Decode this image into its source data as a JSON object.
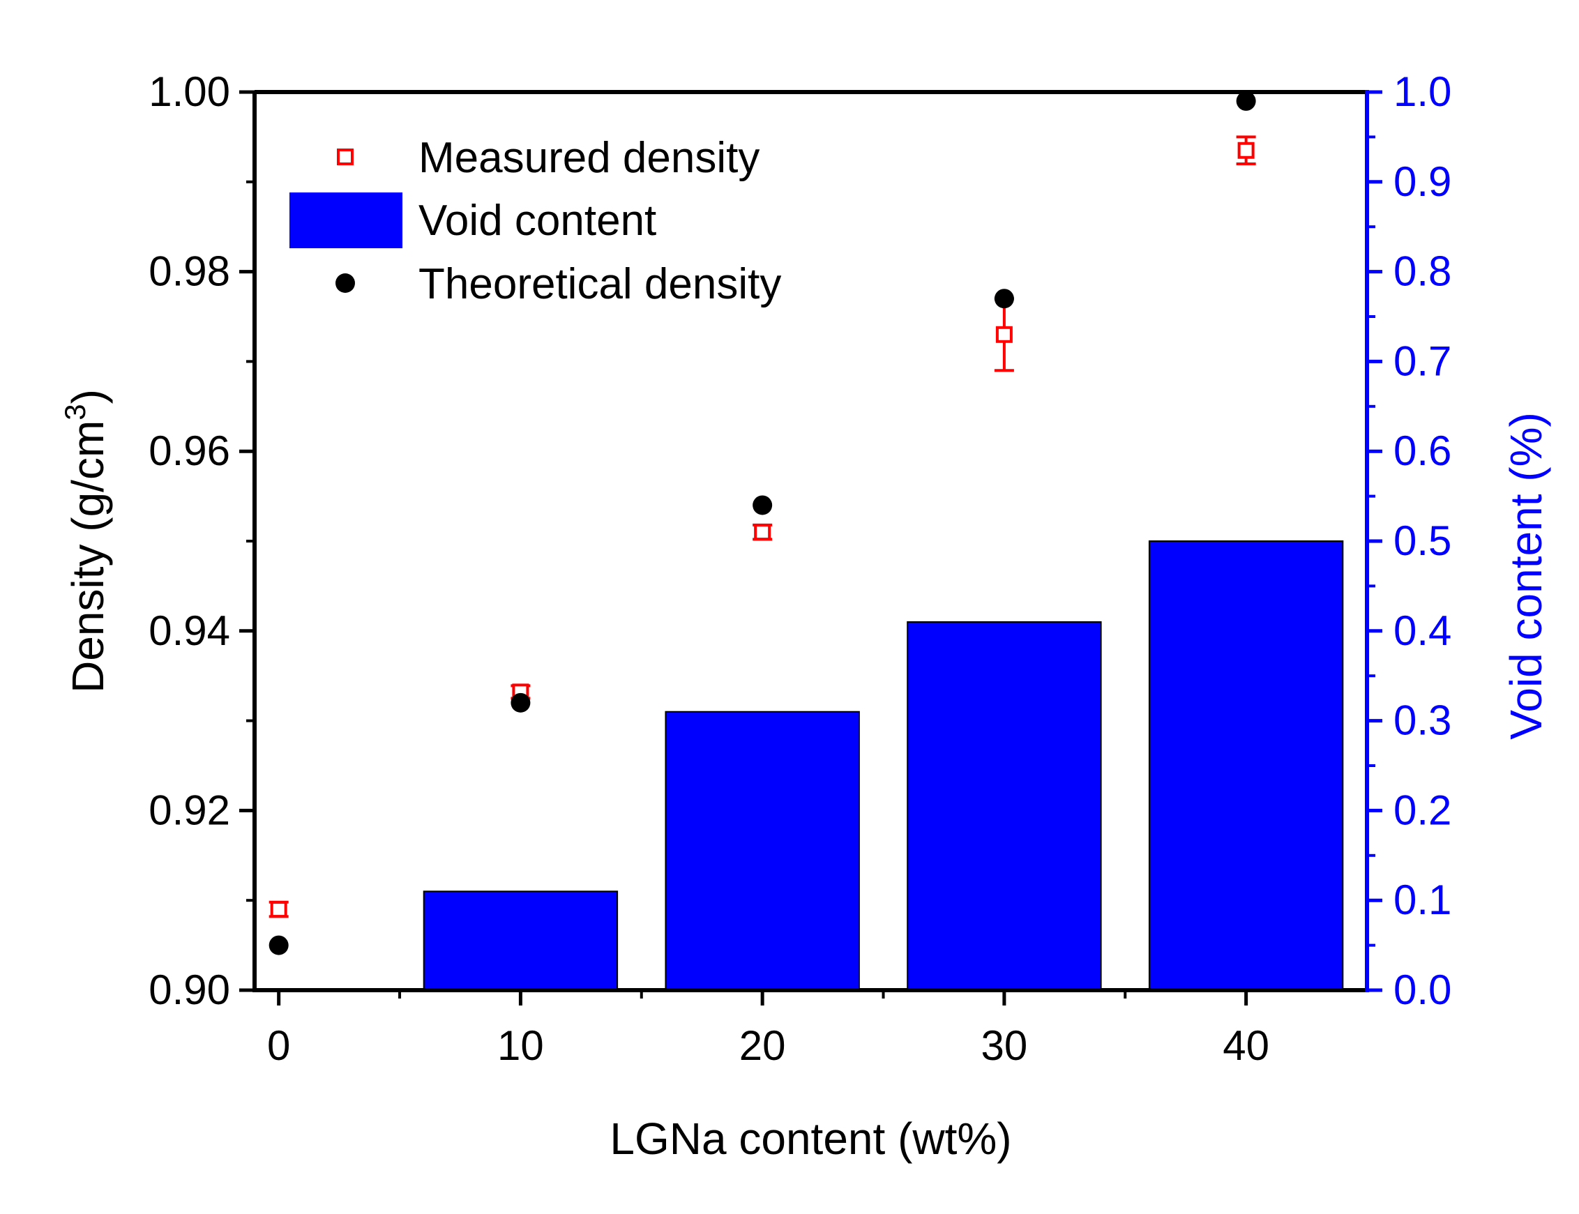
{
  "chart_data": {
    "type": "bar+scatter",
    "title": "",
    "xlabel": "LGNa content (wt%)",
    "ylabel_left": {
      "prefix": "Density (g/cm",
      "superscript": "3",
      "suffix": ")"
    },
    "ylabel_right": "Void content (%)",
    "x_ticks": [
      "0",
      "10",
      "20",
      "30",
      "40"
    ],
    "x_range": [
      -1,
      45
    ],
    "y_left_range": [
      0.9,
      1.0
    ],
    "y_left_ticks": [
      "0.90",
      "0.92",
      "0.94",
      "0.96",
      "0.98",
      "1.00"
    ],
    "y_right_range": [
      0.0,
      1.0
    ],
    "y_right_ticks": [
      "0.0",
      "0.1",
      "0.2",
      "0.3",
      "0.4",
      "0.5",
      "0.6",
      "0.7",
      "0.8",
      "0.9",
      "1.0"
    ],
    "legend_position": "top-left",
    "series": [
      {
        "name": "Measured density",
        "kind": "scatter-open-square-errorbar",
        "axis": "left",
        "color": "#ff0000",
        "x": [
          0,
          10,
          20,
          30,
          40
        ],
        "values": [
          0.909,
          0.9332,
          0.951,
          0.973,
          0.9935
        ],
        "errors": [
          0.0008,
          0.0007,
          0.0008,
          0.004,
          0.0015
        ]
      },
      {
        "name": "Void content",
        "kind": "bar",
        "axis": "right",
        "color": "#0000ff",
        "x": [
          0,
          10,
          20,
          30,
          40
        ],
        "values": [
          0.0,
          0.11,
          0.31,
          0.41,
          0.5
        ]
      },
      {
        "name": "Theoretical density",
        "kind": "scatter-filled-circle",
        "axis": "left",
        "color": "#000000",
        "x": [
          0,
          10,
          20,
          30,
          40
        ],
        "values": [
          0.905,
          0.932,
          0.954,
          0.977,
          0.999
        ]
      }
    ]
  },
  "colors": {
    "left_axis": "#000000",
    "right_axis": "#0000ff",
    "measured": "#ff0000",
    "void": "#0000ff",
    "theoretical": "#000000"
  }
}
